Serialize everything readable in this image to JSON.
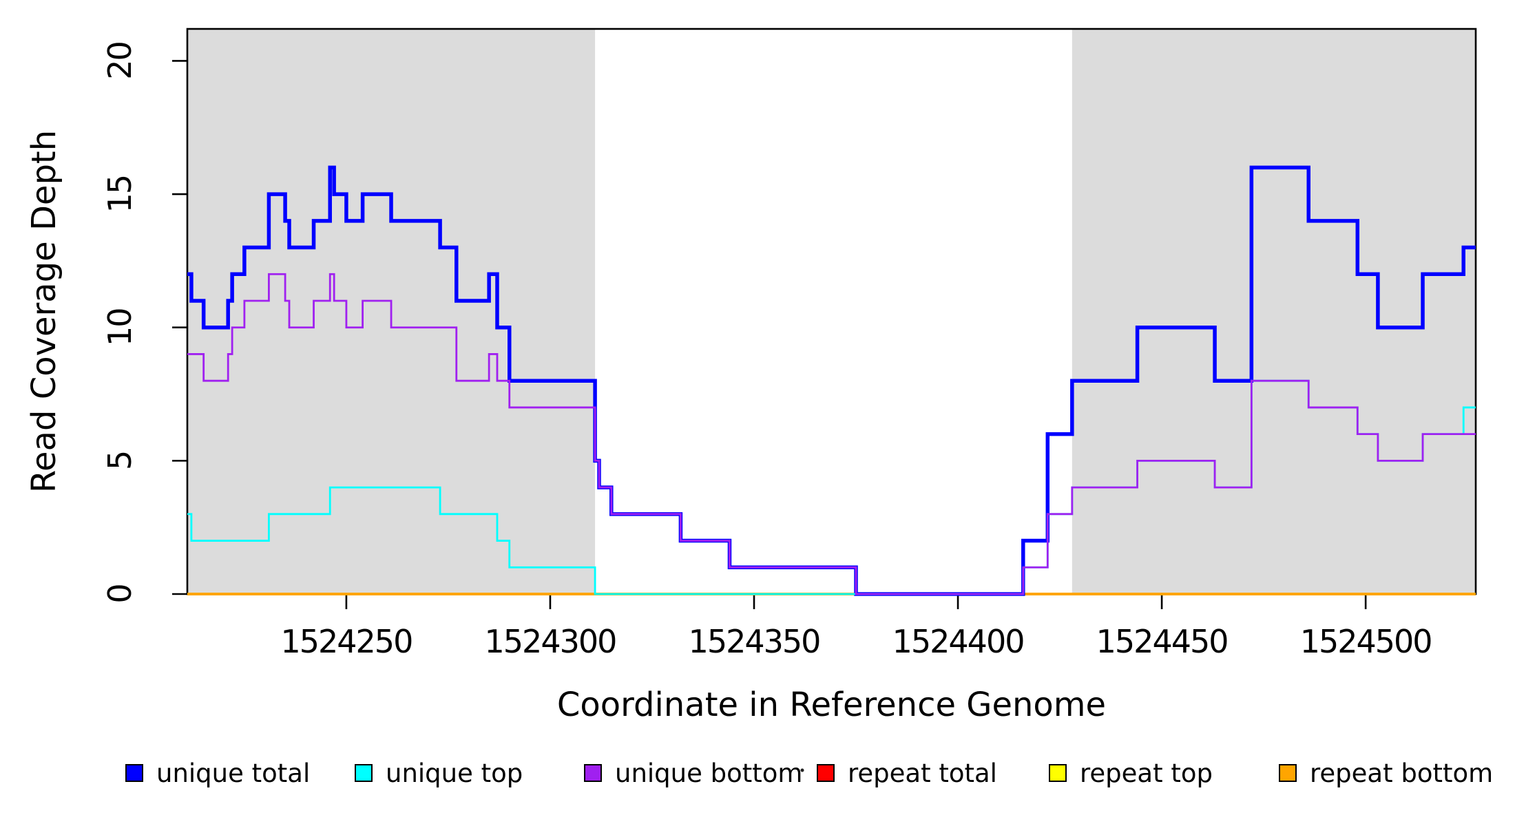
{
  "figure": {
    "background": "#FFFFFF",
    "axis_color": "#000000",
    "shade_color": "#DCDCDC"
  },
  "chart_data": {
    "type": "line",
    "subtype": "step",
    "title": "",
    "xlabel": "Coordinate in Reference Genome",
    "ylabel": "Read Coverage Depth",
    "xlim": [
      1524211,
      1524527
    ],
    "ylim": [
      0,
      21.2
    ],
    "grid": false,
    "legend_position": "bottom",
    "x_ticks": [
      1524250,
      1524300,
      1524350,
      1524400,
      1524450,
      1524500
    ],
    "x_tick_labels": [
      "1524250",
      "1524300",
      "1524350",
      "1524400",
      "1524450",
      "1524500"
    ],
    "y_ticks": [
      0,
      5,
      10,
      15,
      20
    ],
    "y_tick_labels": [
      "0",
      "5",
      "10",
      "15",
      "20"
    ],
    "shaded_regions": [
      {
        "x0": 1524211,
        "x1": 1524311
      },
      {
        "x0": 1524428,
        "x1": 1524527
      }
    ],
    "series": [
      {
        "name": "unique total",
        "color": "#0000FF",
        "line_width": 5.5,
        "steps": [
          [
            1524211,
            12
          ],
          [
            1524212,
            11
          ],
          [
            1524215,
            10
          ],
          [
            1524221,
            11
          ],
          [
            1524222,
            12
          ],
          [
            1524225,
            13
          ],
          [
            1524231,
            15
          ],
          [
            1524235,
            14
          ],
          [
            1524236,
            13
          ],
          [
            1524242,
            14
          ],
          [
            1524246,
            16
          ],
          [
            1524247,
            15
          ],
          [
            1524250,
            14
          ],
          [
            1524254,
            15
          ],
          [
            1524261,
            14
          ],
          [
            1524273,
            13
          ],
          [
            1524277,
            11
          ],
          [
            1524285,
            12
          ],
          [
            1524287,
            10
          ],
          [
            1524290,
            8
          ],
          [
            1524311,
            5
          ],
          [
            1524312,
            4
          ],
          [
            1524315,
            3
          ],
          [
            1524332,
            2
          ],
          [
            1524344,
            1
          ],
          [
            1524375,
            0
          ],
          [
            1524416,
            2
          ],
          [
            1524422,
            6
          ],
          [
            1524428,
            8
          ],
          [
            1524444,
            10
          ],
          [
            1524463,
            8
          ],
          [
            1524472,
            16
          ],
          [
            1524486,
            14
          ],
          [
            1524498,
            12
          ],
          [
            1524503,
            10
          ],
          [
            1524514,
            12
          ],
          [
            1524524,
            13
          ]
        ]
      },
      {
        "name": "unique top",
        "color": "#00FFFF",
        "line_width": 2.8,
        "steps": [
          [
            1524211,
            3
          ],
          [
            1524212,
            2
          ],
          [
            1524231,
            3
          ],
          [
            1524246,
            4
          ],
          [
            1524273,
            3
          ],
          [
            1524287,
            2
          ],
          [
            1524290,
            1
          ],
          [
            1524311,
            0
          ],
          [
            1524416,
            1
          ],
          [
            1524422,
            3
          ],
          [
            1524428,
            4
          ],
          [
            1524444,
            5
          ],
          [
            1524463,
            4
          ],
          [
            1524472,
            8
          ],
          [
            1524486,
            7
          ],
          [
            1524498,
            6
          ],
          [
            1524503,
            5
          ],
          [
            1524514,
            6
          ],
          [
            1524524,
            7
          ]
        ]
      },
      {
        "name": "unique bottom",
        "color": "#A020F0",
        "line_width": 2.8,
        "steps": [
          [
            1524211,
            9
          ],
          [
            1524215,
            8
          ],
          [
            1524221,
            9
          ],
          [
            1524222,
            10
          ],
          [
            1524225,
            11
          ],
          [
            1524231,
            12
          ],
          [
            1524235,
            11
          ],
          [
            1524236,
            10
          ],
          [
            1524242,
            11
          ],
          [
            1524246,
            12
          ],
          [
            1524247,
            11
          ],
          [
            1524250,
            10
          ],
          [
            1524254,
            11
          ],
          [
            1524261,
            10
          ],
          [
            1524277,
            8
          ],
          [
            1524285,
            9
          ],
          [
            1524287,
            8
          ],
          [
            1524290,
            7
          ],
          [
            1524311,
            5
          ],
          [
            1524312,
            4
          ],
          [
            1524315,
            3
          ],
          [
            1524332,
            2
          ],
          [
            1524344,
            1
          ],
          [
            1524375,
            0
          ],
          [
            1524416,
            1
          ],
          [
            1524422,
            3
          ],
          [
            1524428,
            4
          ],
          [
            1524444,
            5
          ],
          [
            1524463,
            4
          ],
          [
            1524472,
            8
          ],
          [
            1524486,
            7
          ],
          [
            1524498,
            6
          ],
          [
            1524503,
            5
          ],
          [
            1524514,
            6
          ]
        ]
      },
      {
        "name": "repeat total",
        "color": "#FF0000",
        "line_width": 4,
        "steps": [
          [
            1524211,
            0
          ]
        ]
      },
      {
        "name": "repeat top",
        "color": "#FFFF00",
        "line_width": 3,
        "steps": [
          [
            1524211,
            0
          ]
        ]
      },
      {
        "name": "repeat bottom",
        "color": "#FFA500",
        "line_width": 4,
        "steps": [
          [
            1524211,
            0
          ]
        ]
      }
    ],
    "draw_order": [
      3,
      4,
      5,
      0,
      1,
      2
    ]
  },
  "legend": {
    "items": [
      {
        "label": "unique total",
        "color": "#0000FF"
      },
      {
        "label": "unique top",
        "color": "#00FFFF"
      },
      {
        "label": "unique bottom",
        "color": "#A020F0"
      },
      {
        "label": "repeat total",
        "color": "#FF0000"
      },
      {
        "label": "repeat top",
        "color": "#FFFF00"
      },
      {
        "label": "repeat bottom",
        "color": "#FFA500"
      }
    ]
  }
}
